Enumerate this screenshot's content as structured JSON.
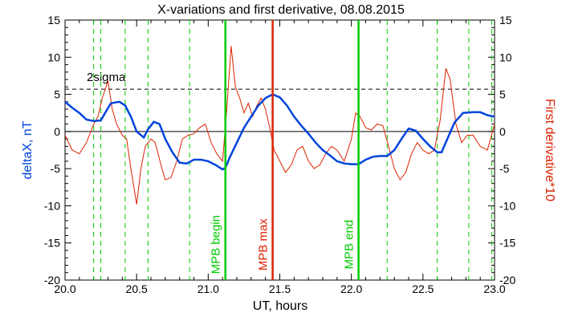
{
  "chart_data": {
    "type": "line",
    "title": "X-variations and first derivative, 08.08.2015",
    "xlabel": "UT, hours",
    "ylabel_left": "deltaX, nT",
    "ylabel_right": "First derivative*10",
    "xlim": [
      20.0,
      23.0
    ],
    "ylim": [
      -20,
      15
    ],
    "x_ticks": [
      "20.0",
      "20.5",
      "21.0",
      "21.5",
      "22.0",
      "22.5",
      "23.0"
    ],
    "y_ticks": [
      "15",
      "10",
      "5",
      "0",
      "-5",
      "-10",
      "-15",
      "-20"
    ],
    "colors": {
      "deltaX": "#0044dd",
      "derivative": "#dd2200",
      "green": "#00cc00",
      "red": "#dd2200"
    },
    "sigma_level": 5.7,
    "sigma_label": "2sigma",
    "dashed_green_x": [
      20.2,
      20.25,
      20.42,
      20.58,
      20.87,
      22.25,
      22.6,
      22.82,
      22.98
    ],
    "markers": [
      {
        "x": 21.12,
        "label": "MPB begin",
        "color": "#00cc00"
      },
      {
        "x": 21.45,
        "label": "MPB max",
        "color": "#dd2200"
      },
      {
        "x": 22.05,
        "label": "MPB end",
        "color": "#00cc00"
      }
    ],
    "series": [
      {
        "name": "deltaX, nT",
        "x": [
          20.0,
          20.05,
          20.1,
          20.15,
          20.2,
          20.25,
          20.28,
          20.32,
          20.38,
          20.42,
          20.46,
          20.5,
          20.55,
          20.58,
          20.62,
          20.66,
          20.7,
          20.75,
          20.8,
          20.85,
          20.9,
          20.95,
          21.0,
          21.05,
          21.1,
          21.12,
          21.15,
          21.2,
          21.25,
          21.3,
          21.35,
          21.4,
          21.45,
          21.5,
          21.55,
          21.6,
          21.65,
          21.7,
          21.75,
          21.8,
          21.85,
          21.9,
          21.95,
          22.0,
          22.05,
          22.1,
          22.15,
          22.2,
          22.25,
          22.3,
          22.35,
          22.4,
          22.45,
          22.5,
          22.55,
          22.6,
          22.63,
          22.67,
          22.72,
          22.78,
          22.85,
          22.9,
          22.95,
          23.0
        ],
        "y": [
          4.0,
          3.2,
          2.5,
          1.6,
          1.4,
          1.5,
          2.5,
          3.8,
          4.0,
          3.5,
          2.0,
          0.0,
          -0.8,
          0.3,
          1.3,
          1.0,
          -1.0,
          -2.8,
          -4.2,
          -4.3,
          -3.8,
          -3.8,
          -4.0,
          -4.5,
          -5.1,
          -4.9,
          -3.5,
          -1.5,
          0.5,
          2.0,
          3.5,
          4.5,
          5.0,
          4.6,
          3.5,
          2.0,
          0.8,
          -0.3,
          -1.5,
          -2.5,
          -3.2,
          -4.0,
          -4.3,
          -4.4,
          -4.4,
          -3.8,
          -3.4,
          -3.3,
          -3.3,
          -2.5,
          -1.0,
          0.4,
          0.1,
          -1.0,
          -2.0,
          -2.8,
          -2.8,
          -1.0,
          1.2,
          2.5,
          2.6,
          2.6,
          2.2,
          2.0
        ]
      },
      {
        "name": "First derivative*10",
        "x": [
          20.0,
          20.05,
          20.1,
          20.15,
          20.2,
          20.23,
          20.26,
          20.3,
          20.33,
          20.36,
          20.4,
          20.43,
          20.46,
          20.5,
          20.53,
          20.56,
          20.6,
          20.63,
          20.67,
          20.7,
          20.74,
          20.78,
          20.82,
          20.86,
          20.9,
          20.94,
          20.98,
          21.02,
          21.06,
          21.1,
          21.13,
          21.16,
          21.19,
          21.22,
          21.25,
          21.28,
          21.31,
          21.34,
          21.37,
          21.4,
          21.43,
          21.46,
          21.5,
          21.54,
          21.58,
          21.62,
          21.66,
          21.7,
          21.74,
          21.78,
          21.82,
          21.86,
          21.9,
          21.95,
          22.0,
          22.03,
          22.06,
          22.1,
          22.14,
          22.18,
          22.22,
          22.26,
          22.3,
          22.34,
          22.38,
          22.42,
          22.46,
          22.5,
          22.54,
          22.58,
          22.62,
          22.66,
          22.69,
          22.73,
          22.77,
          22.81,
          22.85,
          22.9,
          22.95,
          23.0
        ],
        "y": [
          -0.5,
          -2.5,
          -3.0,
          -1.5,
          1.0,
          2.0,
          4.5,
          6.8,
          3.0,
          1.0,
          -0.5,
          -1.0,
          -5.0,
          -9.8,
          -5.0,
          -2.0,
          -1.0,
          -1.5,
          -4.5,
          -6.5,
          -6.2,
          -4.0,
          -1.0,
          -0.5,
          -0.3,
          0.5,
          1.0,
          -1.5,
          -3.0,
          -4.0,
          3.0,
          11.5,
          6.0,
          4.5,
          2.5,
          3.8,
          2.0,
          3.5,
          4.5,
          3.0,
          0.5,
          -2.5,
          -4.0,
          -5.5,
          -4.5,
          -2.5,
          -2.0,
          -4.0,
          -5.0,
          -4.5,
          -3.0,
          -2.0,
          -2.5,
          -4.0,
          -1.0,
          2.5,
          2.0,
          0.5,
          0.2,
          1.0,
          0.8,
          -2.0,
          -5.0,
          -6.5,
          -5.5,
          -3.0,
          -1.5,
          -2.5,
          -3.0,
          -2.5,
          1.5,
          8.5,
          7.0,
          1.0,
          -1.5,
          -0.5,
          -0.5,
          -2.0,
          -2.5,
          1.0
        ]
      }
    ]
  }
}
